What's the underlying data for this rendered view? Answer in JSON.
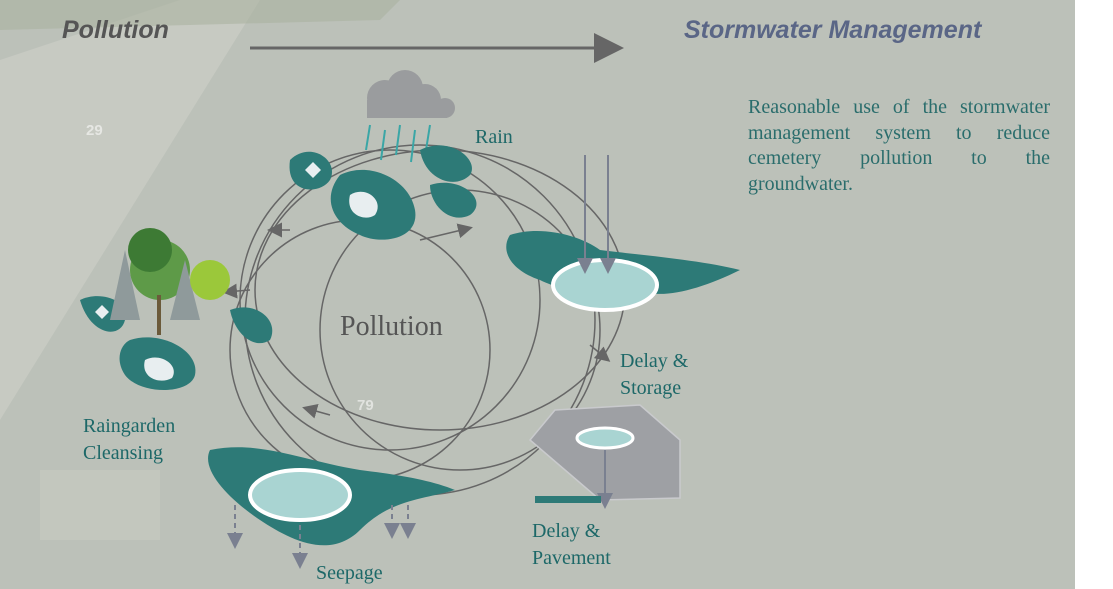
{
  "header": {
    "left_title": "Pollution",
    "right_title": "Stormwater Management"
  },
  "description": "Reasonable use of the stormwater management system to reduce cemetery pollution to the groundwater.",
  "diagram": {
    "center_label": "Pollution",
    "labels": [
      {
        "lines": [
          "Rain"
        ]
      },
      {
        "lines": [
          "Delay &",
          "Storage"
        ]
      },
      {
        "lines": [
          "Delay &",
          "Pavement"
        ]
      },
      {
        "lines": [
          "Seepage"
        ]
      },
      {
        "lines": [
          "Raingarden",
          "Cleansing"
        ]
      }
    ]
  },
  "map_labels": [
    "29",
    "79"
  ]
}
